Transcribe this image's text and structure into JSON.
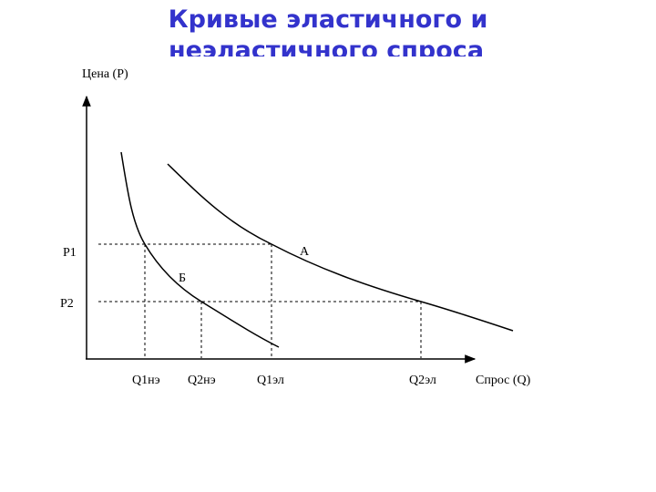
{
  "title": {
    "lines": [
      "Кривые эластичного и",
      "неэластичного спроса"
    ]
  },
  "axes": {
    "y_label": "Цена (P)",
    "x_label": "Спрос (Q)"
  },
  "price_levels": [
    "P1",
    "P2"
  ],
  "quantity_levels": [
    "Q1нэ",
    "Q2нэ",
    "Q1эл",
    "Q2эл"
  ],
  "curve_labels": {
    "elastic": "А",
    "inelastic": "Б"
  }
}
